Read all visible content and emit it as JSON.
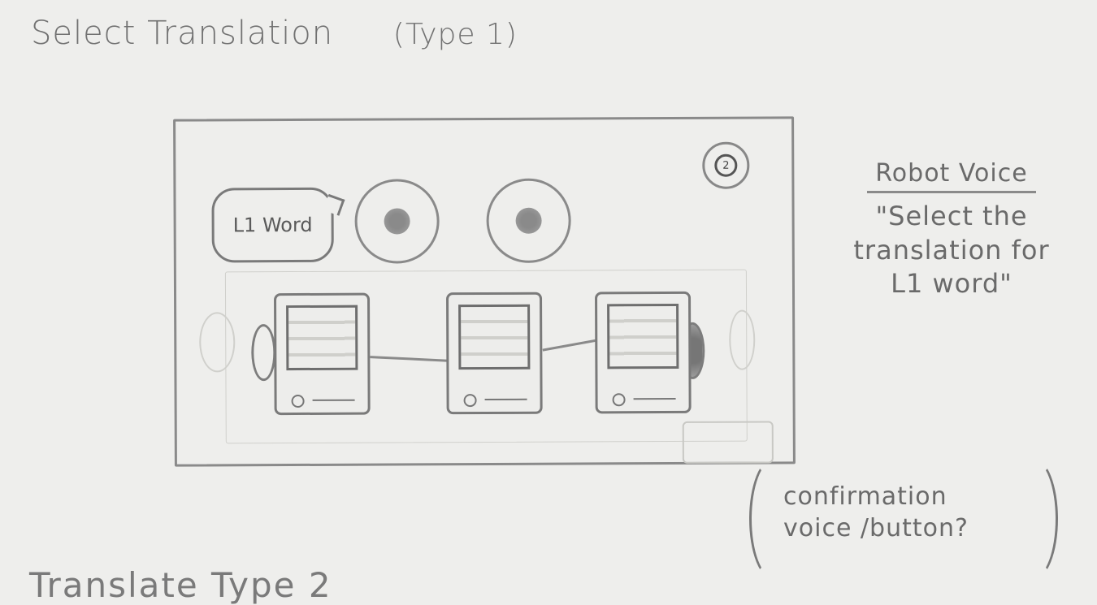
{
  "page": {
    "title": "Select Translation",
    "type_note": "(Type 1)"
  },
  "mockup": {
    "step_badge": "2",
    "speech_bubble": "L1 Word",
    "audio_buttons": 2,
    "cards": 3
  },
  "note": {
    "heading": "Robot Voice",
    "text": "\"Select the\ntranslation for\nL1 word\""
  },
  "aside": {
    "text": "confirmation\nvoice /button?"
  },
  "next_section": {
    "title": "Translate Type 2"
  }
}
